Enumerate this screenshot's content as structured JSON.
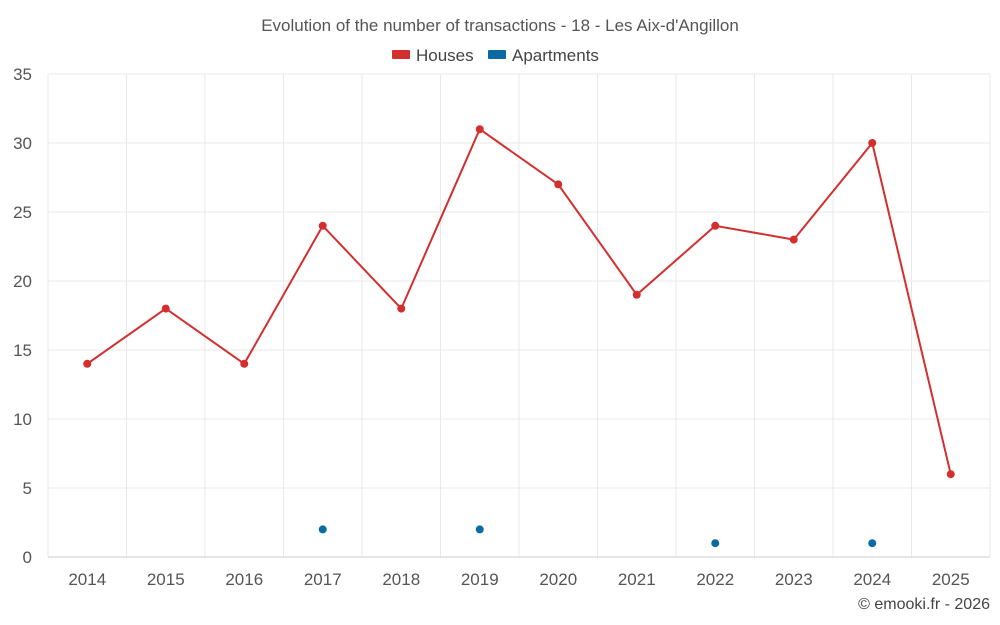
{
  "chart_data": {
    "type": "line",
    "title": "Evolution of the number of transactions - 18 - Les Aix-d'Angillon",
    "categories": [
      "2014",
      "2015",
      "2016",
      "2017",
      "2018",
      "2019",
      "2020",
      "2021",
      "2022",
      "2023",
      "2024",
      "2025"
    ],
    "series": [
      {
        "name": "Houses",
        "color": "#d32f2f",
        "values": [
          14,
          18,
          14,
          24,
          18,
          31,
          27,
          19,
          24,
          23,
          30,
          6
        ]
      },
      {
        "name": "Apartments",
        "color": "#0b6aa2",
        "values": [
          null,
          null,
          null,
          2,
          null,
          2,
          null,
          null,
          1,
          null,
          1,
          null
        ]
      }
    ],
    "y_ticks": [
      "0",
      "5",
      "10",
      "15",
      "20",
      "25",
      "30",
      "35"
    ],
    "ylim": [
      0,
      35
    ],
    "xlabel": "",
    "ylabel": "",
    "grid": true,
    "legend_position": "top-center"
  },
  "credit": "© emooki.fr - 2026"
}
